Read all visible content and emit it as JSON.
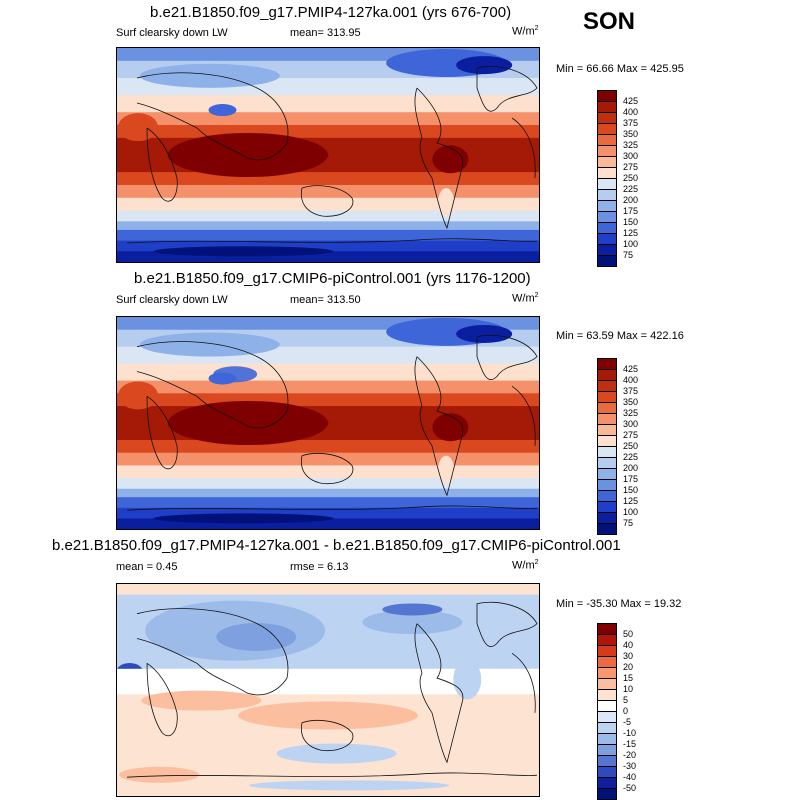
{
  "season": "SON",
  "panels": [
    {
      "title": "b.e21.B1850.f09_g17.PMIP4-127ka.001 (yrs 676-700)",
      "left": "Surf clearsky down LW",
      "mean": "mean= 313.95",
      "units": "W/m",
      "units_sup": "2",
      "minmax": "Min =  66.66 Max = 425.95",
      "levels": [
        "425",
        "400",
        "375",
        "350",
        "325",
        "300",
        "275",
        "250",
        "225",
        "200",
        "175",
        "150",
        "125",
        "100",
        "75"
      ]
    },
    {
      "title": "b.e21.B1850.f09_g17.CMIP6-piControl.001 (yrs 1176-1200)",
      "left": "Surf clearsky down LW",
      "mean": "mean= 313.50",
      "units": "W/m",
      "units_sup": "2",
      "minmax": "Min =  63.59 Max = 422.16",
      "levels": [
        "425",
        "400",
        "375",
        "350",
        "325",
        "300",
        "275",
        "250",
        "225",
        "200",
        "175",
        "150",
        "125",
        "100",
        "75"
      ]
    },
    {
      "title": "b.e21.B1850.f09_g17.PMIP4-127ka.001 - b.e21.B1850.f09_g17.CMIP6-piControl.001",
      "left": "mean =   0.45",
      "mean": "rmse =   6.13",
      "units": "W/m",
      "units_sup": "2",
      "minmax": "Min = -35.30 Max =  19.32",
      "levels": [
        "50",
        "40",
        "30",
        "20",
        "15",
        "10",
        "5",
        "0",
        "-5",
        "-10",
        "-15",
        "-20",
        "-30",
        "-40",
        "-50"
      ]
    }
  ],
  "colors": {
    "abs_scale": [
      "#7f0000",
      "#a51a06",
      "#c0300e",
      "#d9481e",
      "#e86a3e",
      "#f4906a",
      "#fbb897",
      "#fde0cd",
      "#dbe6f5",
      "#b6cdf0",
      "#8fb1ea",
      "#6a92e0",
      "#3e66d8",
      "#1f3fc8",
      "#0a1fa0",
      "#00127a"
    ],
    "diff_scale": [
      "#7f0000",
      "#b21406",
      "#d63a1c",
      "#ec6a42",
      "#f6976e",
      "#fbbfa0",
      "#fde3d2",
      "#ffffff",
      "#dce8f8",
      "#bcd3f2",
      "#9dbbe9",
      "#7ea0df",
      "#5475d0",
      "#2d4bbf",
      "#0f1f9e",
      "#00127a"
    ]
  },
  "chart_data": [
    {
      "type": "heatmap",
      "title": "b.e21.B1850.f09_g17.PMIP4-127ka.001 (yrs 676-700)",
      "variable": "Surf clearsky down LW",
      "units": "W/m2",
      "mean": 313.95,
      "min": 66.66,
      "max": 425.95,
      "contour_levels": [
        75,
        100,
        125,
        150,
        175,
        200,
        225,
        250,
        275,
        300,
        325,
        350,
        375,
        400,
        425
      ]
    },
    {
      "type": "heatmap",
      "title": "b.e21.B1850.f09_g17.CMIP6-piControl.001 (yrs 1176-1200)",
      "variable": "Surf clearsky down LW",
      "units": "W/m2",
      "mean": 313.5,
      "min": 63.59,
      "max": 422.16,
      "contour_levels": [
        75,
        100,
        125,
        150,
        175,
        200,
        225,
        250,
        275,
        300,
        325,
        350,
        375,
        400,
        425
      ]
    },
    {
      "type": "heatmap",
      "title": "b.e21.B1850.f09_g17.PMIP4-127ka.001 - b.e21.B1850.f09_g17.CMIP6-piControl.001",
      "units": "W/m2",
      "mean": 0.45,
      "rmse": 6.13,
      "min": -35.3,
      "max": 19.32,
      "contour_levels": [
        -50,
        -40,
        -30,
        -20,
        -15,
        -10,
        -5,
        0,
        5,
        10,
        15,
        20,
        30,
        40,
        50
      ]
    }
  ]
}
